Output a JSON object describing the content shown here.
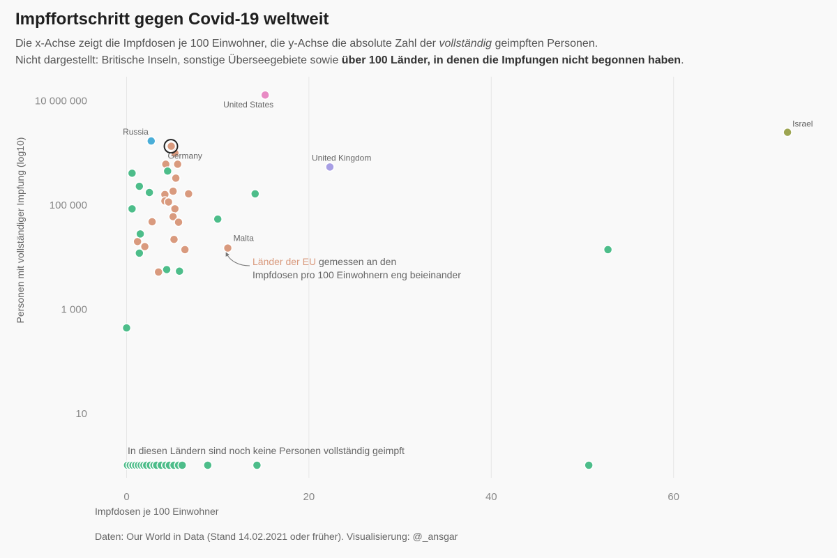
{
  "header": {
    "title": "Impffortschritt gegen Covid-19 weltweit",
    "subtitle_line1_a": "Die x-Achse zeigt die Impfdosen je 100 Einwohner, die y-Achse die absolute Zahl der ",
    "subtitle_line1_em": "vollständig",
    "subtitle_line1_b": " geimpften Personen.",
    "subtitle_line2_a": "Nicht dargestellt: Britische Inseln, sonstige Überseegebiete sowie ",
    "subtitle_line2_bold": "über 100 Länder, in denen die Impfungen nicht begonnen haben",
    "subtitle_line2_b": "."
  },
  "footer": "Daten: Our World in Data (Stand 14.02.2021 oder früher). Visualisierung: @_ansgar",
  "colors": {
    "eu": "#d99a7e",
    "other": "#4dbd8a",
    "us": "#e88bc4",
    "russia": "#4aaed8",
    "uk": "#a79ee4",
    "israel": "#9da552",
    "ring": "#222222"
  },
  "chart_data": {
    "type": "scatter",
    "xlabel": "Impfdosen je 100 Einwohner",
    "ylabel": "Personen mit vollständiger Impfung (log10)",
    "y_scale": "log10",
    "xlim": [
      -1.5,
      77
    ],
    "x_ticks": [
      {
        "v": 0,
        "label": "0"
      },
      {
        "v": 20,
        "label": "20"
      },
      {
        "v": 40,
        "label": "40"
      },
      {
        "v": 60,
        "label": "60"
      }
    ],
    "y_ticks": [
      {
        "v": 10,
        "label": "10"
      },
      {
        "v": 1000,
        "label": "1 000"
      },
      {
        "v": 100000,
        "label": "100 000"
      },
      {
        "v": 10000000,
        "label": "10 000 000"
      }
    ],
    "grid_x": true,
    "zero_band_label": "In diesen Ländern sind noch keine Personen vollständig geimpft",
    "annotation": {
      "highlight": "Länder der EU",
      "text_a": " gemessen an den",
      "text_b": "Impfdosen pro 100 Einwohnern eng beieinander"
    },
    "labeled_points": [
      {
        "name": "United States",
        "x": 15.2,
        "y": 13000000,
        "group": "us"
      },
      {
        "name": "Israel",
        "x": 72.5,
        "y": 2500000,
        "group": "israel"
      },
      {
        "name": "Russia",
        "x": 2.7,
        "y": 1700000,
        "group": "russia"
      },
      {
        "name": "United Kingdom",
        "x": 22.3,
        "y": 540000,
        "group": "uk"
      },
      {
        "name": "Germany",
        "x": 4.9,
        "y": 1350000,
        "group": "eu",
        "ring": true
      },
      {
        "name": "Malta",
        "x": 11.1,
        "y": 15000,
        "group": "eu"
      }
    ],
    "points": [
      {
        "x": 5.3,
        "y": 1000000,
        "group": "eu"
      },
      {
        "x": 5.0,
        "y": 1300000,
        "group": "eu"
      },
      {
        "x": 4.3,
        "y": 610000,
        "group": "eu"
      },
      {
        "x": 5.6,
        "y": 610000,
        "group": "eu"
      },
      {
        "x": 5.4,
        "y": 330000,
        "group": "eu"
      },
      {
        "x": 5.1,
        "y": 185000,
        "group": "eu"
      },
      {
        "x": 4.2,
        "y": 160000,
        "group": "eu"
      },
      {
        "x": 6.8,
        "y": 165000,
        "group": "eu"
      },
      {
        "x": 4.2,
        "y": 120000,
        "group": "eu"
      },
      {
        "x": 4.6,
        "y": 115000,
        "group": "eu"
      },
      {
        "x": 5.3,
        "y": 85000,
        "group": "eu"
      },
      {
        "x": 5.1,
        "y": 60000,
        "group": "eu"
      },
      {
        "x": 5.7,
        "y": 47000,
        "group": "eu"
      },
      {
        "x": 2.8,
        "y": 48000,
        "group": "eu"
      },
      {
        "x": 5.2,
        "y": 22000,
        "group": "eu"
      },
      {
        "x": 1.2,
        "y": 20000,
        "group": "eu"
      },
      {
        "x": 2.0,
        "y": 16000,
        "group": "eu"
      },
      {
        "x": 6.4,
        "y": 14000,
        "group": "eu"
      },
      {
        "x": 3.5,
        "y": 5200,
        "group": "eu"
      },
      {
        "x": 0.6,
        "y": 410000,
        "group": "other"
      },
      {
        "x": 4.5,
        "y": 450000,
        "group": "other"
      },
      {
        "x": 1.4,
        "y": 230000,
        "group": "other"
      },
      {
        "x": 2.5,
        "y": 175000,
        "group": "other"
      },
      {
        "x": 14.1,
        "y": 165000,
        "group": "other"
      },
      {
        "x": 0.6,
        "y": 85000,
        "group": "other"
      },
      {
        "x": 10.0,
        "y": 54000,
        "group": "other"
      },
      {
        "x": 1.5,
        "y": 28000,
        "group": "other"
      },
      {
        "x": 1.4,
        "y": 12000,
        "group": "other"
      },
      {
        "x": 4.4,
        "y": 5800,
        "group": "other"
      },
      {
        "x": 5.8,
        "y": 5400,
        "group": "other"
      },
      {
        "x": 52.8,
        "y": 14000,
        "group": "other"
      },
      {
        "x": 0.0,
        "y": 440,
        "group": "other"
      }
    ],
    "zero_points_x": [
      0.1,
      0.4,
      0.7,
      1.0,
      1.3,
      1.6,
      1.9,
      2.2,
      2.6,
      3.0,
      3.3,
      3.8,
      4.3,
      4.7,
      5.2,
      5.7,
      6.1,
      8.9,
      14.3,
      50.7
    ]
  }
}
